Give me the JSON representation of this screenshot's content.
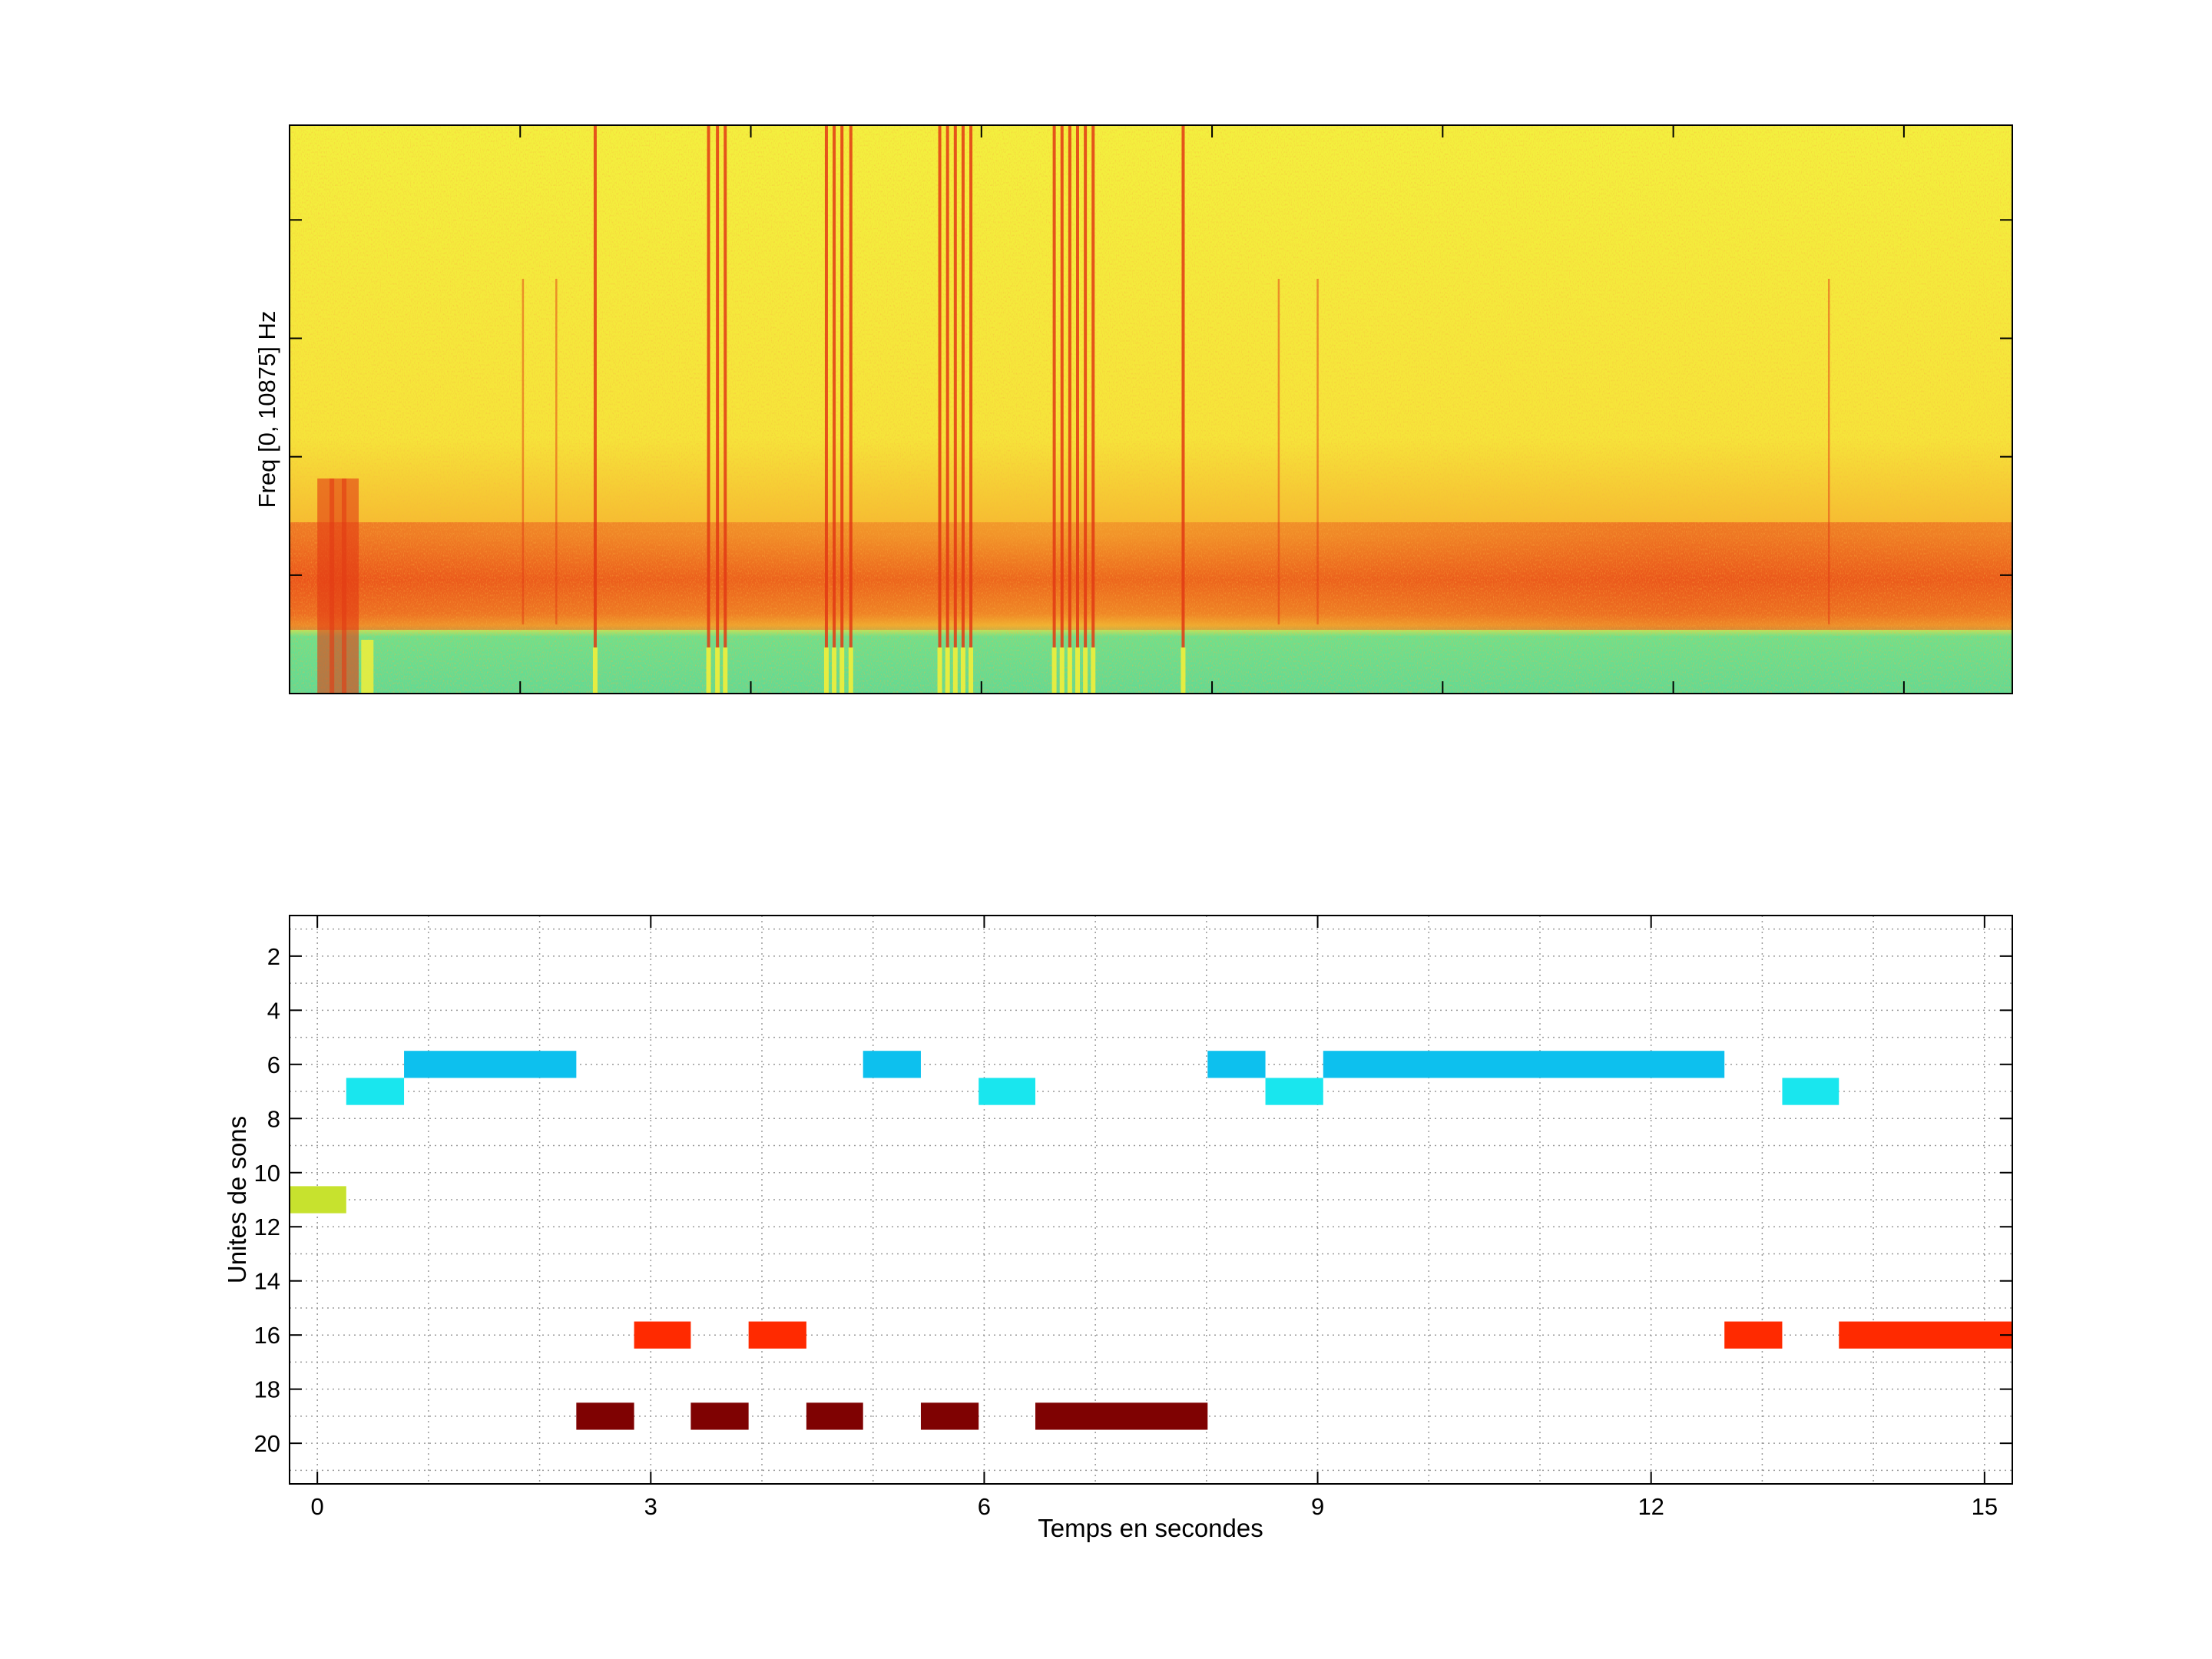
{
  "chart_data": [
    {
      "type": "heatmap",
      "panel": "spectrogram",
      "ylabel": "Freq [0, 10875] Hz",
      "xlim": [
        -0.25,
        15.25
      ],
      "colormap": "jet",
      "colors": {
        "background": "#F2EE3A",
        "energy": "#E23A14",
        "band": "#6DE08A"
      },
      "strong_lines_x": [
        2.5,
        3.52,
        3.6,
        3.67,
        4.58,
        4.65,
        4.72,
        4.8,
        5.6,
        5.67,
        5.74,
        5.81,
        5.88,
        6.63,
        6.7,
        6.77,
        6.84,
        6.91,
        6.98,
        7.79
      ],
      "faint_lines_x": [
        1.85,
        2.15,
        8.65,
        9.0,
        13.6
      ]
    },
    {
      "type": "bar",
      "panel": "sound-units",
      "xlabel": "Temps en secondes",
      "ylabel": "Unites de sons",
      "xlim": [
        -0.25,
        15.25
      ],
      "ylim": [
        21.5,
        0.5
      ],
      "xticks": [
        0,
        3,
        6,
        9,
        12,
        15
      ],
      "yticks": [
        2,
        4,
        6,
        8,
        10,
        12,
        14,
        16,
        18,
        20
      ],
      "grid": true,
      "segments": [
        {
          "unit": 11,
          "start": -0.25,
          "end": 0.26,
          "color": "#C7E22E"
        },
        {
          "unit": 7,
          "start": 0.26,
          "end": 0.78,
          "color": "#19E6EE"
        },
        {
          "unit": 6,
          "start": 0.78,
          "end": 2.33,
          "color": "#0DC0EE"
        },
        {
          "unit": 19,
          "start": 2.33,
          "end": 2.85,
          "color": "#7F0202"
        },
        {
          "unit": 16,
          "start": 2.85,
          "end": 3.36,
          "color": "#FF2A00"
        },
        {
          "unit": 19,
          "start": 3.36,
          "end": 3.88,
          "color": "#7F0202"
        },
        {
          "unit": 16,
          "start": 3.88,
          "end": 4.4,
          "color": "#FF2A00"
        },
        {
          "unit": 19,
          "start": 4.4,
          "end": 4.91,
          "color": "#7F0202"
        },
        {
          "unit": 6,
          "start": 4.91,
          "end": 5.43,
          "color": "#0DC0EE"
        },
        {
          "unit": 19,
          "start": 5.43,
          "end": 5.95,
          "color": "#7F0202"
        },
        {
          "unit": 7,
          "start": 5.95,
          "end": 6.46,
          "color": "#19E6EE"
        },
        {
          "unit": 19,
          "start": 6.46,
          "end": 8.01,
          "color": "#7F0202"
        },
        {
          "unit": 6,
          "start": 8.01,
          "end": 8.53,
          "color": "#0DC0EE"
        },
        {
          "unit": 7,
          "start": 8.53,
          "end": 9.05,
          "color": "#19E6EE"
        },
        {
          "unit": 6,
          "start": 9.05,
          "end": 12.66,
          "color": "#0DC0EE"
        },
        {
          "unit": 16,
          "start": 12.66,
          "end": 13.18,
          "color": "#FF2A00"
        },
        {
          "unit": 7,
          "start": 13.18,
          "end": 13.69,
          "color": "#19E6EE"
        },
        {
          "unit": 16,
          "start": 13.69,
          "end": 15.25,
          "color": "#FF2A00"
        }
      ]
    }
  ]
}
